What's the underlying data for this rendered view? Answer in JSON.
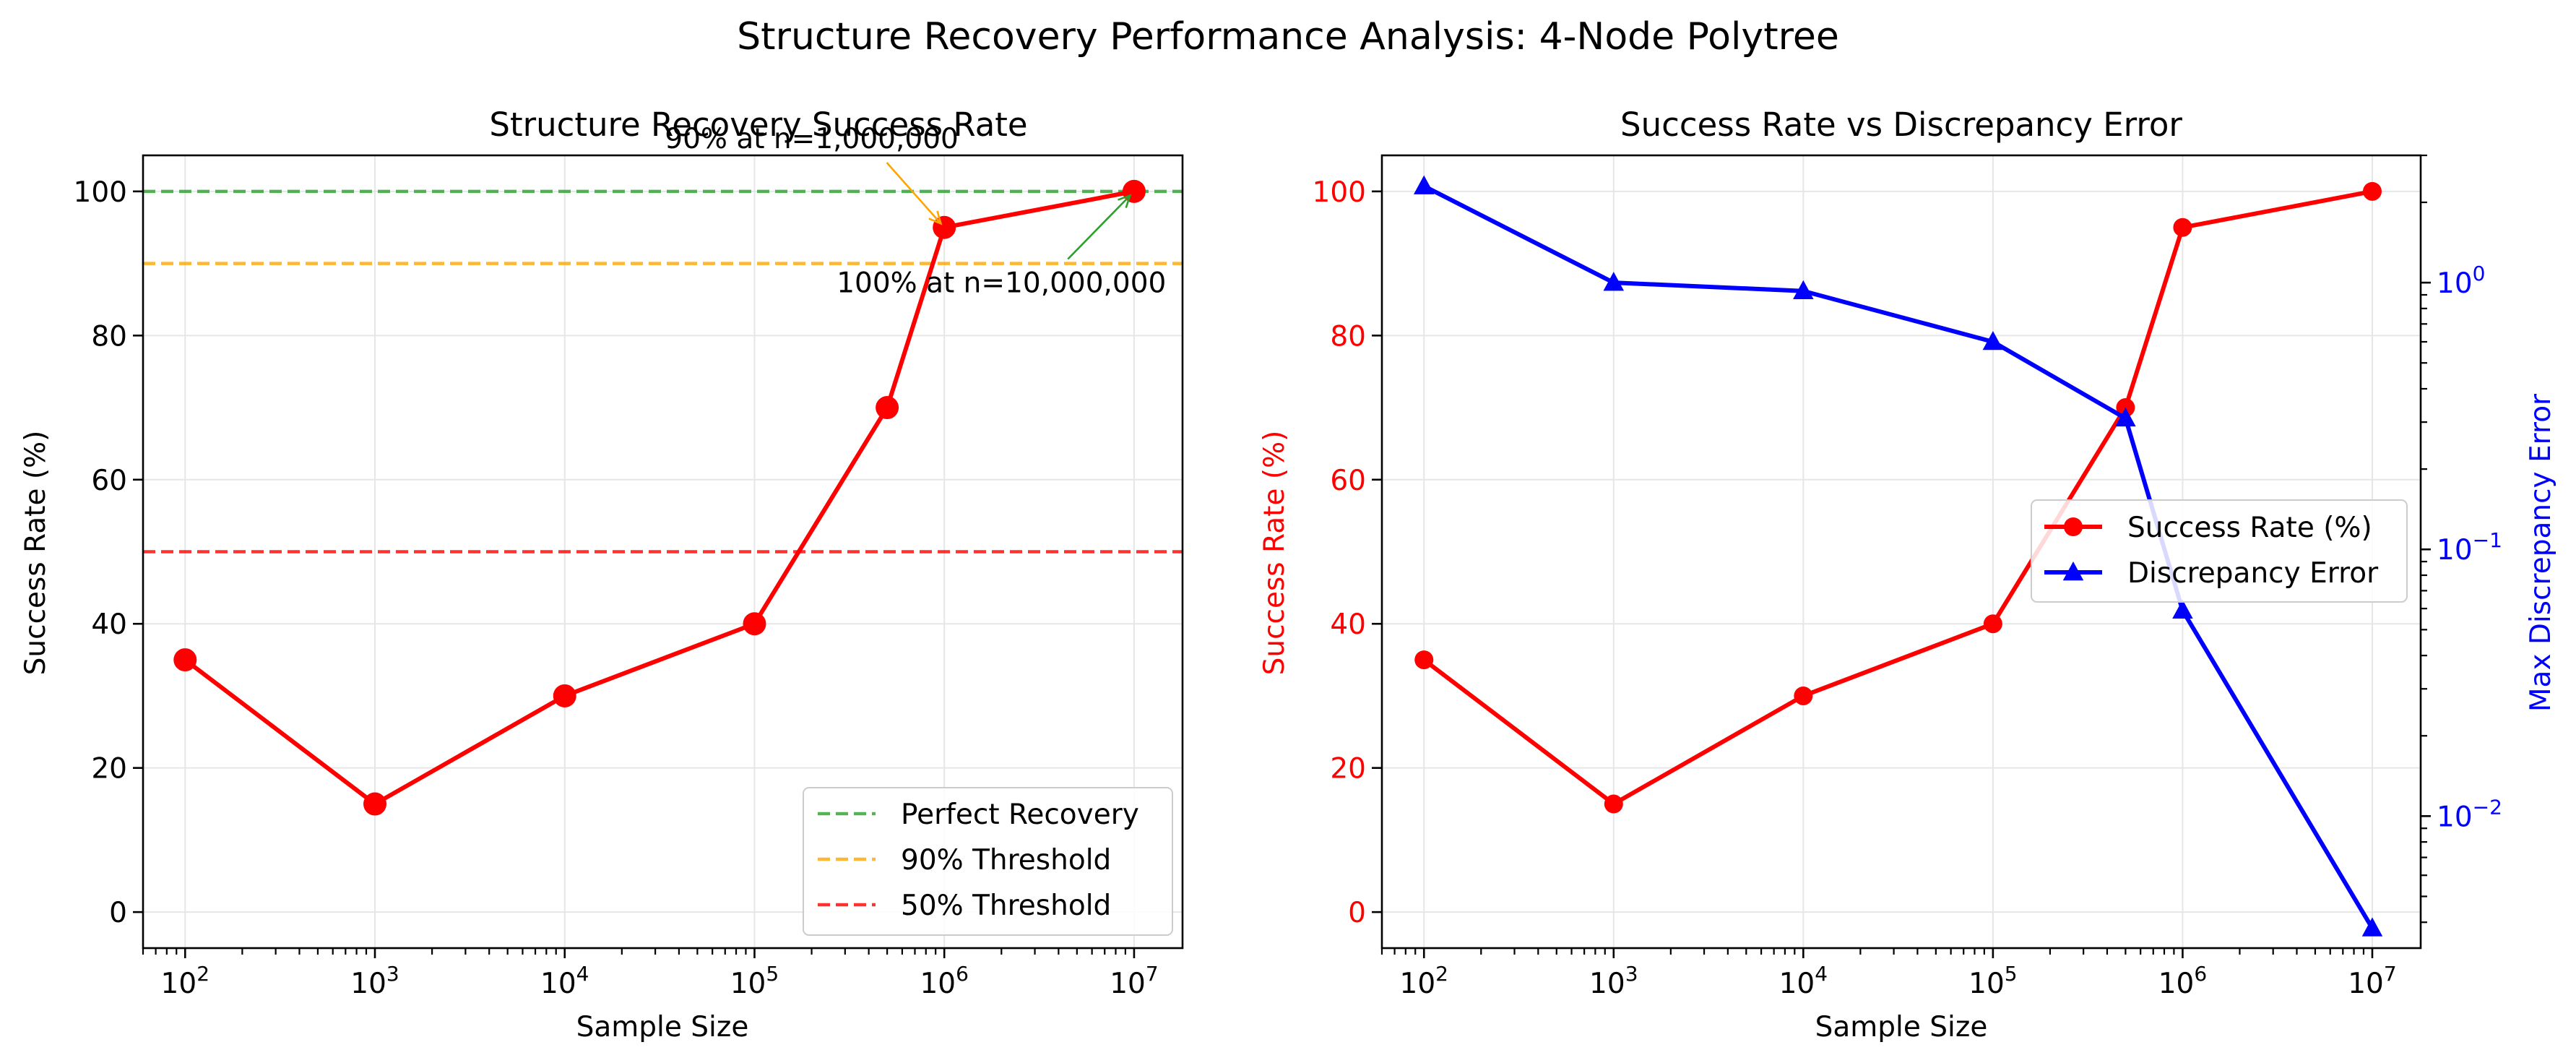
{
  "figure": {
    "suptitle": "Structure Recovery Performance Analysis: 4-Node Polytree"
  },
  "chart_data": [
    {
      "type": "line",
      "title": "Structure Recovery Success Rate",
      "xlabel": "Sample Size",
      "ylabel": "Success Rate (%)",
      "xscale": "log",
      "xlim": [
        60,
        18000000
      ],
      "ylim": [
        -5,
        105
      ],
      "x": [
        100,
        1000,
        10000,
        100000,
        500000,
        1000000,
        10000000
      ],
      "x_ticks": [
        100,
        1000,
        10000,
        100000,
        1000000,
        10000000
      ],
      "x_tick_labels": [
        {
          "base": "10",
          "exp": "2"
        },
        {
          "base": "10",
          "exp": "3"
        },
        {
          "base": "10",
          "exp": "4"
        },
        {
          "base": "10",
          "exp": "5"
        },
        {
          "base": "10",
          "exp": "6"
        },
        {
          "base": "10",
          "exp": "7"
        }
      ],
      "y_ticks": [
        0,
        20,
        40,
        60,
        80,
        100
      ],
      "y_tick_labels": [
        "0",
        "20",
        "40",
        "60",
        "80",
        "100"
      ],
      "grid": true,
      "series": [
        {
          "values": [
            35,
            15,
            30,
            40,
            70,
            95,
            100
          ],
          "color": "#ff0000",
          "marker": "circle"
        }
      ],
      "hlines": [
        {
          "y": 100,
          "label": "Perfect Recovery",
          "color": "#2ca02c"
        },
        {
          "y": 90,
          "label": "90% Threshold",
          "color": "#ffa500"
        },
        {
          "y": 50,
          "label": "50% Threshold",
          "color": "#ff0000"
        }
      ],
      "annotations": [
        {
          "text": "90% at n=1,000,000",
          "point": [
            1000000,
            95
          ],
          "text_at": [
            200000,
            106
          ],
          "color": "#ffa500"
        },
        {
          "text": "100% at n=10,000,000",
          "point": [
            10000000,
            100
          ],
          "text_at": [
            2000000,
            86
          ],
          "color": "#2ca02c"
        }
      ],
      "legend": {
        "position": "lower right"
      }
    },
    {
      "type": "line",
      "title": "Success Rate vs Discrepancy Error",
      "xlabel": "Sample Size",
      "ylabel": "Success Rate (%)",
      "ylabel_right": "Max Discrepancy Error",
      "xscale": "log",
      "yscale_right": "log",
      "xlim": [
        60,
        18000000
      ],
      "ylim": [
        -5,
        105
      ],
      "ylim_right": [
        0.0032,
        3.0
      ],
      "x": [
        100,
        1000,
        10000,
        100000,
        500000,
        1000000,
        10000000
      ],
      "x_ticks": [
        100,
        1000,
        10000,
        100000,
        1000000,
        10000000
      ],
      "x_tick_labels": [
        {
          "base": "10",
          "exp": "2"
        },
        {
          "base": "10",
          "exp": "3"
        },
        {
          "base": "10",
          "exp": "4"
        },
        {
          "base": "10",
          "exp": "5"
        },
        {
          "base": "10",
          "exp": "6"
        },
        {
          "base": "10",
          "exp": "7"
        }
      ],
      "y_ticks": [
        0,
        20,
        40,
        60,
        80,
        100
      ],
      "y_tick_labels": [
        "0",
        "20",
        "40",
        "60",
        "80",
        "100"
      ],
      "y_ticks_right": [
        0.01,
        0.1,
        1
      ],
      "y_tick_labels_right": [
        {
          "base": "10",
          "exp": "−2"
        },
        {
          "base": "10",
          "exp": "−1"
        },
        {
          "base": "10",
          "exp": "0"
        }
      ],
      "grid": true,
      "series": [
        {
          "name": "Success Rate (%)",
          "values": [
            35,
            15,
            30,
            40,
            70,
            95,
            100
          ],
          "color": "#ff0000",
          "marker": "circle",
          "axis": "left"
        },
        {
          "name": "Discrepancy Error",
          "values": [
            2.3,
            1.0,
            0.93,
            0.6,
            0.31,
            0.059,
            0.0038
          ],
          "color": "#0000ff",
          "marker": "triangle",
          "axis": "right"
        }
      ],
      "legend": {
        "position": "center right"
      }
    }
  ]
}
